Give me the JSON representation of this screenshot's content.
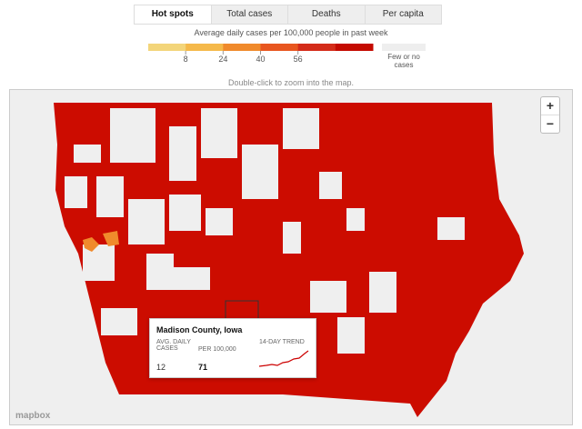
{
  "tabs": [
    "Hot spots",
    "Total cases",
    "Deaths",
    "Per capita"
  ],
  "legend": {
    "title": "Average daily cases per 100,000 people in past week",
    "colors": [
      "#f3d57a",
      "#f5b94a",
      "#f08a2c",
      "#e8561f",
      "#d42c19",
      "#c40a00"
    ],
    "ticks": [
      8,
      24,
      40,
      56
    ],
    "none_label": "Few or no cases",
    "none_color": "#eeeeee"
  },
  "hint": "Double-click to zoom into the map.",
  "zoom": [
    "+",
    "−"
  ],
  "tooltip": {
    "title": "Madison County, Iowa",
    "columns": [
      "AVG. DAILY CASES",
      "PER 100,000",
      "14-DAY TREND"
    ],
    "values": [
      12,
      71
    ]
  },
  "attribution": "mapbox"
}
